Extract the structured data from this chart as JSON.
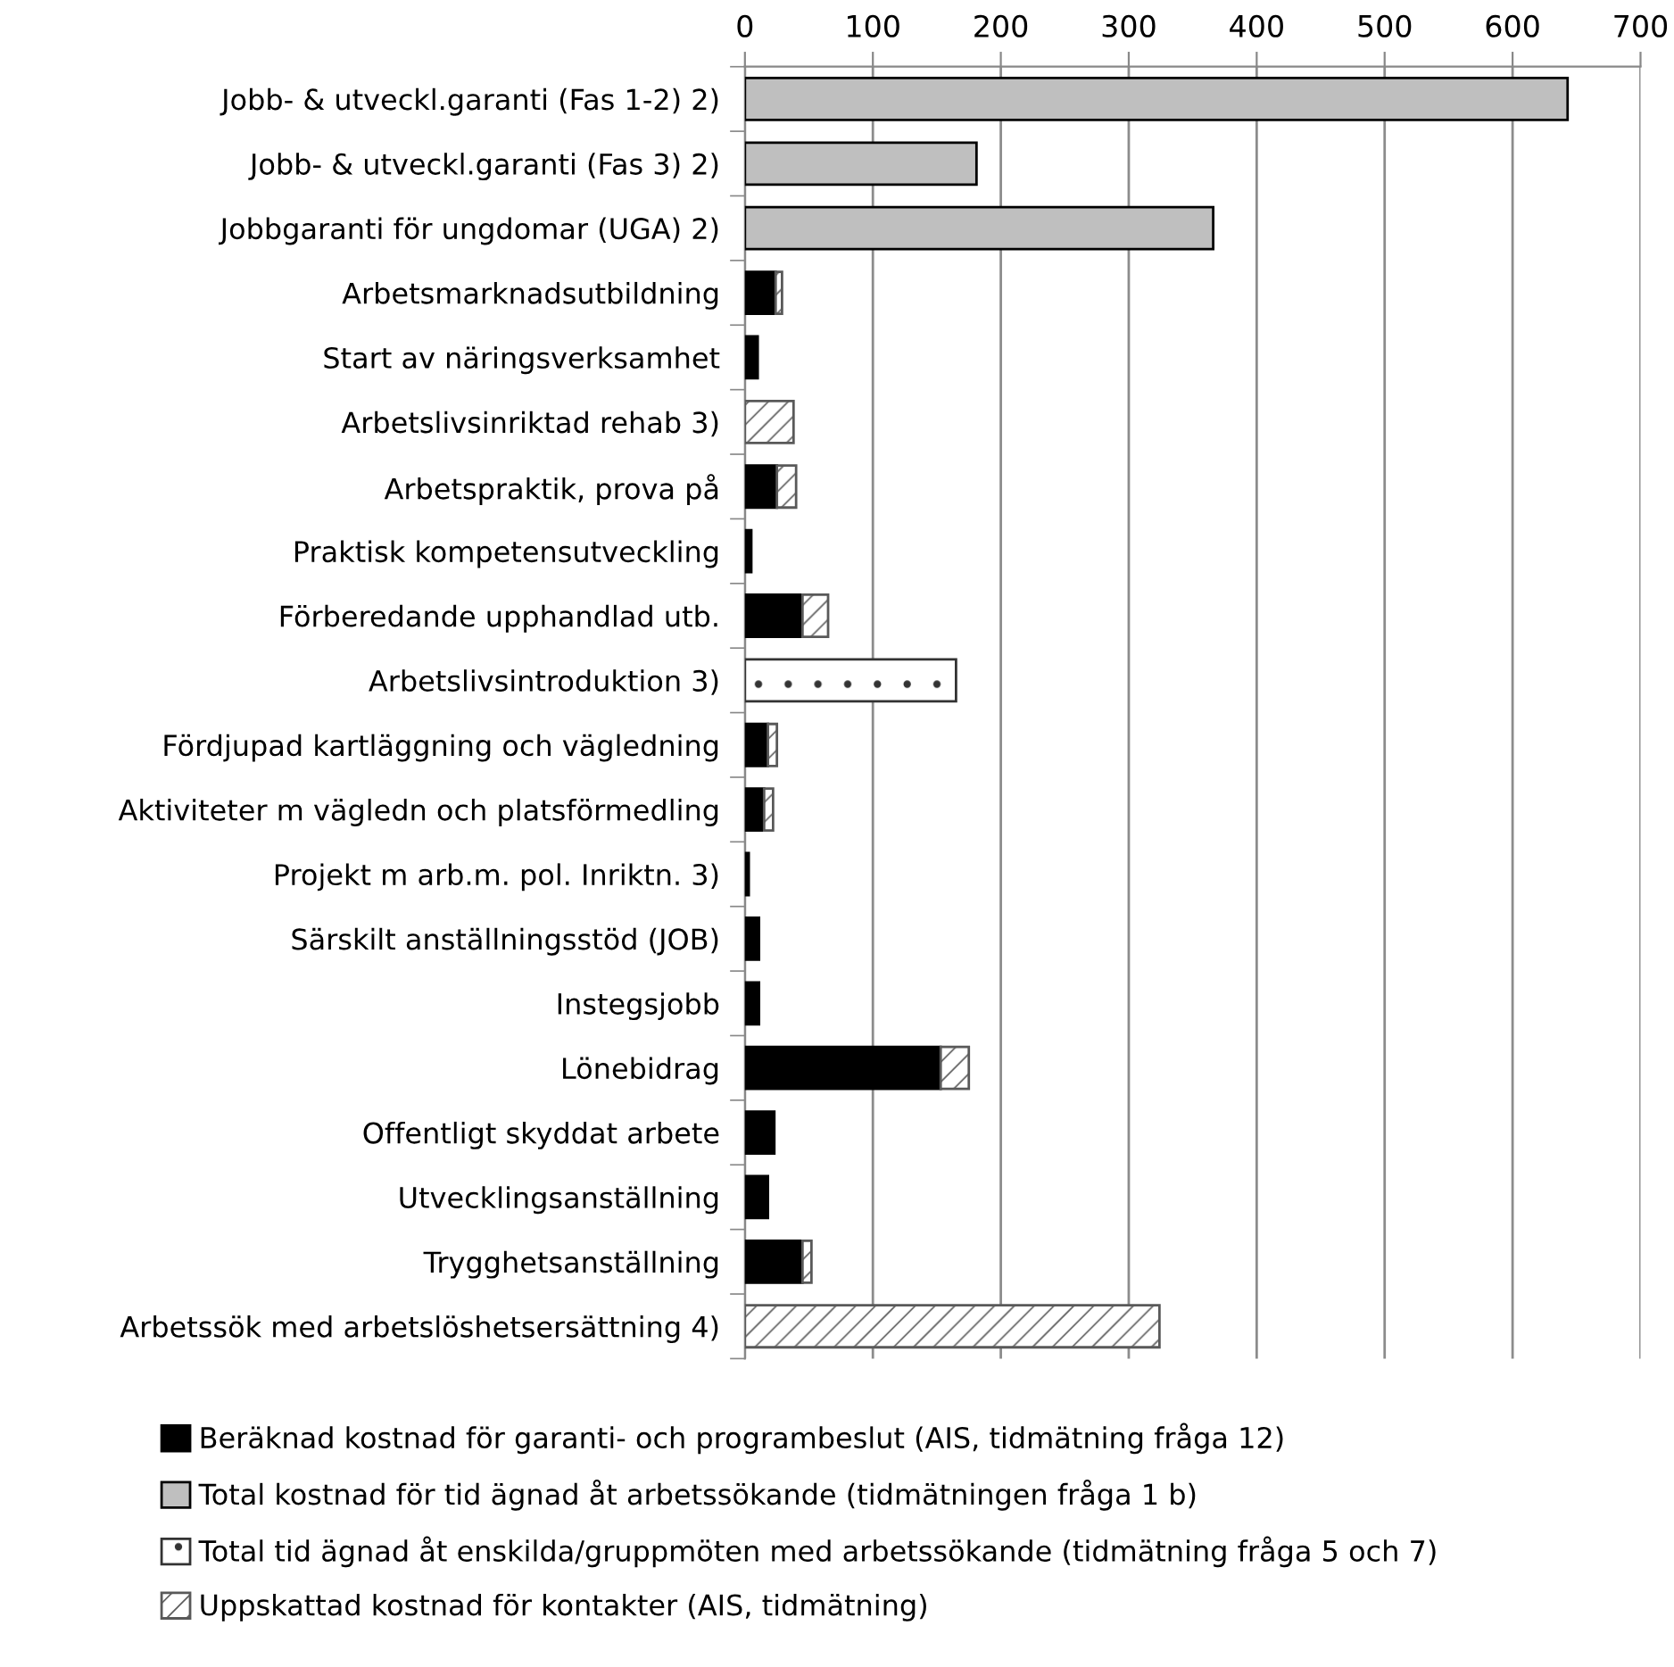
{
  "chart_data": {
    "type": "bar",
    "orientation": "horizontal",
    "stacked": true,
    "categories": [
      "Jobb- & utveckl.garanti (Fas 1-2) 2)",
      "Jobb- & utveckl.garanti (Fas 3) 2)",
      "Jobbgaranti för ungdomar (UGA) 2)",
      "Arbetsmarknadsutbildning",
      "Start av näringsverksamhet",
      "Arbetslivsinriktad rehab 3)",
      "Arbetspraktik, prova på",
      "Praktisk kompetensutveckling",
      "Förberedande upphandlad utb.",
      "Arbetslivsintroduktion 3)",
      "Fördjupad kartläggning och vägledning",
      "Aktiviteter m vägledn och platsförmedling",
      "Projekt m arb.m. pol. Inriktn. 3)",
      "Särskilt anställningsstöd (JOB)",
      "Instegsjobb",
      "Lönebidrag",
      "Offentligt skyddat arbete",
      "Utvecklingsanställning",
      "Trygghetsanställning",
      "Arbetssök med arbetslöshetsersättning 4)"
    ],
    "series": [
      {
        "name": "Beräknad kostnad för garanti- och programbeslut (AIS, tidmätning fråga 12)",
        "color": "#000000",
        "values": [
          null,
          null,
          null,
          24,
          10,
          null,
          25,
          5,
          45,
          null,
          18,
          15,
          3,
          11,
          11,
          153,
          23,
          18,
          45,
          null
        ]
      },
      {
        "name": "Total kostnad för tid ägnad åt arbetssökande (tidmätningen fråga 1 b)",
        "color": "#bfbfbf",
        "values": [
          643,
          181,
          366,
          null,
          null,
          null,
          null,
          null,
          null,
          null,
          null,
          null,
          null,
          null,
          null,
          null,
          null,
          null,
          null,
          null
        ]
      },
      {
        "name": "Total tid ägnad åt enskilda/gruppmöten med arbetssökande (tidmätning fråga 5 och 7)",
        "color": "#333333",
        "values": [
          null,
          null,
          null,
          null,
          null,
          null,
          null,
          null,
          null,
          165,
          null,
          null,
          null,
          null,
          null,
          null,
          null,
          null,
          null,
          null
        ]
      },
      {
        "name": "Uppskattad kostnad för kontakter (AIS, tidmätning)",
        "color": "#595959",
        "values": [
          null,
          null,
          null,
          5,
          null,
          38,
          15,
          null,
          20,
          null,
          7,
          7,
          null,
          null,
          null,
          22,
          null,
          null,
          7,
          324
        ]
      }
    ],
    "xlim": [
      0,
      700
    ],
    "xticks": [
      0,
      100,
      200,
      300,
      400,
      500,
      600,
      700
    ],
    "grid": "x",
    "legend": "bottom"
  }
}
